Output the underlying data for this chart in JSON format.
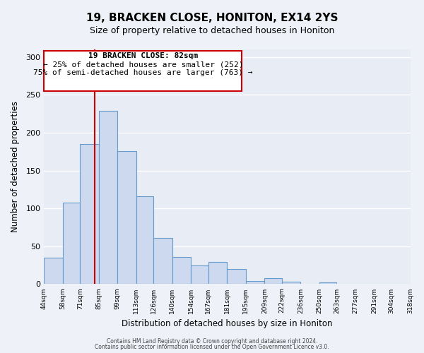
{
  "title": "19, BRACKEN CLOSE, HONITON, EX14 2YS",
  "subtitle": "Size of property relative to detached houses in Honiton",
  "xlabel": "Distribution of detached houses by size in Honiton",
  "ylabel": "Number of detached properties",
  "bar_values": [
    35,
    108,
    185,
    229,
    176,
    116,
    61,
    36,
    25,
    29,
    20,
    4,
    8,
    3,
    0,
    2,
    0,
    0,
    0,
    0
  ],
  "bar_edges": [
    44,
    58,
    71,
    85,
    99,
    113,
    126,
    140,
    154,
    167,
    181,
    195,
    209,
    222,
    236,
    250,
    263,
    277,
    291,
    304,
    318
  ],
  "tick_labels": [
    "44sqm",
    "58sqm",
    "71sqm",
    "85sqm",
    "99sqm",
    "113sqm",
    "126sqm",
    "140sqm",
    "154sqm",
    "167sqm",
    "181sqm",
    "195sqm",
    "209sqm",
    "222sqm",
    "236sqm",
    "250sqm",
    "263sqm",
    "277sqm",
    "291sqm",
    "304sqm",
    "318sqm"
  ],
  "bar_color": "#ccd9ee",
  "bar_edge_color": "#6699cc",
  "vline_x": 82,
  "vline_color": "#cc0000",
  "ylim": [
    0,
    310
  ],
  "yticks": [
    0,
    50,
    100,
    150,
    200,
    250,
    300
  ],
  "annotation_title": "19 BRACKEN CLOSE: 82sqm",
  "annotation_line1": "← 25% of detached houses are smaller (252)",
  "annotation_line2": "75% of semi-detached houses are larger (763) →",
  "annotation_box_color": "#ffffff",
  "annotation_box_edge": "#cc0000",
  "footer1": "Contains HM Land Registry data © Crown copyright and database right 2024.",
  "footer2": "Contains public sector information licensed under the Open Government Licence v3.0.",
  "bg_color": "#eef2f8",
  "plot_bg_color": "#e8edf5",
  "grid_color": "#ffffff",
  "figsize": [
    6.0,
    5.0
  ],
  "dpi": 100
}
